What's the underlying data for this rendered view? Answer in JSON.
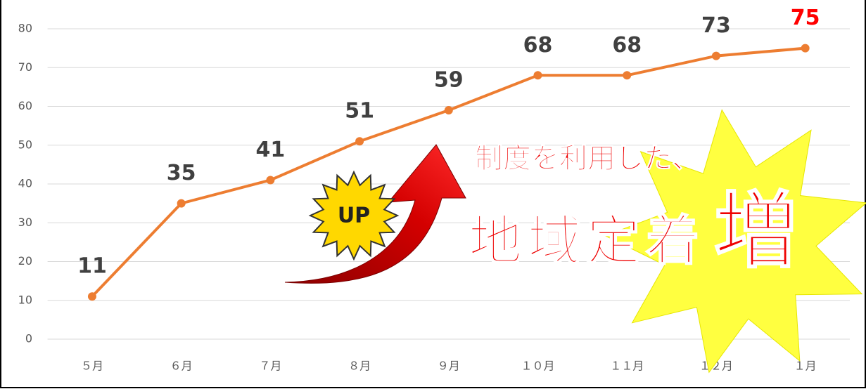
{
  "chart_data": {
    "type": "line",
    "categories": [
      "５月",
      "６月",
      "７月",
      "８月",
      "９月",
      "１０月",
      "１１月",
      "１２月",
      "１月"
    ],
    "values": [
      11,
      35,
      41,
      51,
      59,
      68,
      68,
      73,
      75
    ],
    "color": "#ed7d31",
    "label_colors": [
      "#404040",
      "#404040",
      "#404040",
      "#404040",
      "#404040",
      "#404040",
      "#404040",
      "#404040",
      "#ff0000"
    ],
    "ylim": [
      0,
      80
    ],
    "yticks": [
      0,
      10,
      20,
      30,
      40,
      50,
      60,
      70,
      80
    ],
    "grid": true,
    "annotations": {
      "badge": "UP",
      "caption": "制度を利用した、",
      "headline": "地域定着",
      "emphasis": "増"
    }
  }
}
